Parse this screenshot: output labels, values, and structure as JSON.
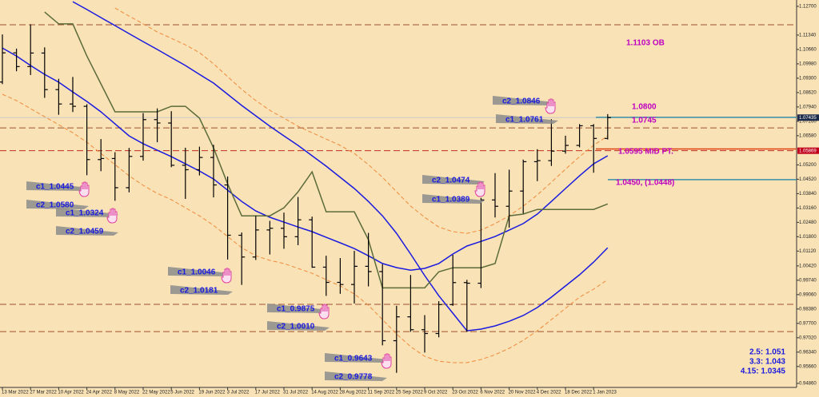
{
  "chart_data": {
    "type": "ohlc",
    "categories": [
      "13 Mar 2022",
      null,
      "27 Mar 2022",
      null,
      "10 Apr 2022",
      null,
      "24 Apr 2022",
      null,
      "8 May 2022",
      null,
      "22 May 2022",
      null,
      "5 Jun 2022",
      null,
      "19 Jun 2022",
      null,
      "3 Jul 2022",
      null,
      "17 Jul 2022",
      null,
      "31 Jul 2022",
      null,
      "14 Aug 2022",
      null,
      "28 Aug 2022",
      null,
      "11 Sep 2022",
      null,
      "25 Sep 2022",
      null,
      "9 Oct 2022",
      null,
      "23 Oct 2022",
      null,
      "6 Nov 2022",
      null,
      "20 Nov 2022",
      null,
      "4 Dec 2022",
      null,
      "18 Dec 2022",
      null,
      "1 Jan 2023",
      null
    ],
    "open": [
      1.0912,
      1.105,
      1.0985,
      1.1049,
      1.0876,
      1.0808,
      1.0797,
      1.0545,
      1.055,
      1.0412,
      1.056,
      1.0734,
      1.0718,
      1.0518,
      1.0497,
      1.0555,
      1.0425,
      1.0187,
      1.0084,
      1.0212,
      1.022,
      1.018,
      1.026,
      1.0036,
      0.9964,
      0.9954,
      1.004,
      1.0015,
      0.9688,
      0.9801,
      0.974,
      0.9722,
      0.9859,
      0.9963,
      0.996,
      1.0354,
      1.0324,
      1.0396,
      1.0535,
      1.054,
      1.0585,
      1.0612,
      1.0705,
      1.0645
    ],
    "high": [
      1.1137,
      1.107,
      1.1185,
      1.1076,
      1.0927,
      1.0936,
      1.0807,
      1.0642,
      1.058,
      1.06,
      1.0765,
      1.0787,
      1.0774,
      1.0601,
      1.0606,
      1.0615,
      1.0465,
      1.02,
      1.0279,
      1.0255,
      1.0294,
      1.0368,
      1.0275,
      1.009,
      1.0079,
      1.0113,
      1.0198,
      1.005,
      0.9853,
      0.9999,
      0.9809,
      0.9875,
      1.0094,
      0.9976,
      1.0364,
      1.0481,
      1.0497,
      1.0545,
      1.0594,
      1.0736,
      1.0658,
      1.0713,
      1.0713,
      1.076
    ],
    "low": [
      1.0902,
      1.0963,
      1.0945,
      1.0837,
      1.0757,
      1.077,
      1.0471,
      1.049,
      1.035,
      1.039,
      1.054,
      1.0627,
      1.0509,
      1.0359,
      1.047,
      1.0366,
      1.0072,
      0.9952,
      1.007,
      1.0096,
      1.0123,
      1.014,
      1.0033,
      0.99,
      0.991,
      0.9864,
      0.9945,
      0.9666,
      0.9536,
      0.973,
      0.9632,
      0.9704,
      0.9853,
      0.973,
      0.9937,
      1.0271,
      1.0223,
      1.029,
      1.0443,
      1.0515,
      1.0573,
      1.0603,
      1.0483,
      1.064
    ],
    "close": [
      1.105,
      1.0985,
      1.1049,
      1.0876,
      1.0808,
      1.0797,
      1.0545,
      1.055,
      1.0412,
      1.056,
      1.0734,
      1.0718,
      1.0518,
      1.0497,
      1.0555,
      1.0425,
      1.0187,
      1.0084,
      1.0212,
      1.022,
      1.018,
      1.026,
      1.0036,
      0.9964,
      0.9954,
      1.004,
      1.0015,
      0.9688,
      0.9801,
      0.974,
      0.9722,
      0.9859,
      0.9963,
      0.996,
      1.0354,
      1.0324,
      1.0396,
      1.0535,
      1.054,
      1.0585,
      1.0612,
      1.0705,
      1.0645,
      1.07435
    ],
    "color": "#000000",
    "series": [
      {
        "color": "#1a1ae0",
        "style": "solid",
        "values": [
          null,
          null,
          null,
          null,
          null,
          1.1292,
          1.1255,
          1.1217,
          1.1179,
          1.1141,
          1.1103,
          1.1066,
          1.1028,
          1.099,
          1.0948,
          1.0907,
          1.0854,
          1.0801,
          1.0752,
          1.0703,
          1.0657,
          1.0612,
          1.0563,
          1.0514,
          1.0461,
          1.0408,
          1.0347,
          1.0279,
          1.0196,
          1.0098,
          0.9996,
          0.9901,
          0.9818,
          0.9735,
          0.9743,
          0.9758,
          0.978,
          0.9807,
          0.9845,
          0.9894,
          0.9947,
          1.0,
          1.006,
          1.0128
        ]
      },
      {
        "color": "#1a1ae0",
        "style": "solid",
        "values": [
          1.1073,
          1.1035,
          1.099,
          1.0948,
          1.0911,
          1.0865,
          1.082,
          1.0771,
          1.0714,
          1.0657,
          1.062,
          1.0589,
          1.0559,
          1.0525,
          1.0491,
          1.0453,
          1.04,
          1.0347,
          1.0302,
          1.0272,
          1.0249,
          1.0226,
          1.0204,
          1.0177,
          1.0151,
          1.0124,
          1.009,
          1.0053,
          1.0034,
          1.0022,
          1.003,
          1.0053,
          1.0098,
          1.0136,
          1.0158,
          1.0181,
          1.0211,
          1.0242,
          1.0287,
          1.0347,
          1.0408,
          1.0468,
          1.0525,
          1.0563
        ]
      },
      {
        "color": "#f08a3c",
        "style": "dashed",
        "values": [
          null,
          null,
          null,
          null,
          null,
          null,
          null,
          null,
          1.1262,
          1.1224,
          1.1187,
          1.1149,
          1.1119,
          1.1088,
          1.1051,
          1.0998,
          1.0937,
          1.0877,
          1.0824,
          1.0778,
          1.0741,
          1.0703,
          1.0672,
          1.0642,
          1.0612,
          1.0574,
          1.0521,
          1.0461,
          1.0393,
          1.0325,
          1.0272,
          1.0226,
          1.0204,
          1.0196,
          1.0211,
          1.0242,
          1.0279,
          1.0325,
          1.0378,
          1.0438,
          1.0499,
          1.0559,
          1.0612,
          1.0657
        ]
      },
      {
        "color": "#f08a3c",
        "style": "dashed",
        "values": [
          1.0854,
          1.0824,
          1.0786,
          1.0748,
          1.071,
          1.0672,
          1.0627,
          1.0574,
          1.0521,
          1.0468,
          1.0423,
          1.0385,
          1.0355,
          1.0317,
          1.0279,
          1.0234,
          1.0181,
          1.0128,
          1.009,
          1.0068,
          1.0053,
          1.003,
          1.0007,
          0.9977,
          0.9947,
          0.9909,
          0.9856,
          0.9788,
          0.972,
          0.966,
          0.9614,
          0.9591,
          0.9584,
          0.9584,
          0.9599,
          0.9622,
          0.9652,
          0.969,
          0.9735,
          0.9788,
          0.9841,
          0.9894,
          0.9932,
          0.9977
        ]
      },
      {
        "color": "#5c6b3a",
        "style": "solid",
        "values": [
          null,
          null,
          null,
          1.1243,
          1.1187,
          1.1187,
          1.1035,
          1.0903,
          1.0771,
          1.0771,
          1.0771,
          1.0771,
          1.0797,
          1.0797,
          1.0741,
          1.06,
          1.043,
          1.0279,
          1.0279,
          1.0279,
          1.0317,
          1.0392,
          1.0487,
          1.0298,
          1.0298,
          1.0298,
          1.0166,
          0.9938,
          0.9938,
          0.9938,
          0.9938,
          1.0014,
          1.0033,
          1.0033,
          1.0033,
          1.0053,
          1.0279,
          1.0287,
          1.0309,
          1.0309,
          1.0309,
          1.0309,
          1.0309,
          1.0335
        ]
      }
    ],
    "levels": [
      {
        "value": 1.1183,
        "color": "#a0522d",
        "style": "dashed"
      },
      {
        "value": 1.0695,
        "color": "#a0522d",
        "style": "dashed"
      },
      {
        "value": 1.05869,
        "color": "#c03020",
        "style": "dashed"
      },
      {
        "value": 0.986,
        "color": "#a0522d",
        "style": "dashed"
      },
      {
        "value": 0.9731,
        "color": "#a0522d",
        "style": "dashed"
      },
      {
        "value": 1.07435,
        "color": "#c8c8c8",
        "style": "solid"
      },
      {
        "value": 1.0745,
        "color": "#3a8fa8",
        "style": "solid"
      },
      {
        "value": 1.0595,
        "color": "#e04010",
        "style": "solid"
      },
      {
        "value": 1.045,
        "color": "#3a8fa8",
        "style": "solid"
      }
    ],
    "price_marks": [
      {
        "value": 1.07435,
        "label": "1.07435",
        "color": "#1c2a4a"
      },
      {
        "value": 1.05869,
        "label": "1.05869",
        "color": "#c0001c"
      }
    ],
    "annotations": [
      {
        "text": "1.1103 OB",
        "color": "#c000c0"
      },
      {
        "text": "1.0800",
        "color": "#c000c0"
      },
      {
        "text": "1.0745",
        "color": "#c000c0"
      },
      {
        "text": "1.0595 MID PT.",
        "color": "#c000c0"
      },
      {
        "text": "1.0450, (1.0448)",
        "color": "#c000c0"
      },
      {
        "text": "c2_1.0846",
        "color": "#1a1ae0"
      },
      {
        "text": "c1_1.0761",
        "color": "#1a1ae0"
      },
      {
        "text": "c2_1.0474",
        "color": "#1a1ae0"
      },
      {
        "text": "c1_1.0389",
        "color": "#1a1ae0"
      },
      {
        "text": "c1_1.0445",
        "color": "#1a1ae0"
      },
      {
        "text": "c2_1.0580",
        "color": "#1a1ae0"
      },
      {
        "text": "c1_1.0324",
        "color": "#1a1ae0"
      },
      {
        "text": "c2_1.0459",
        "color": "#1a1ae0"
      },
      {
        "text": "c1_1.0046",
        "color": "#1a1ae0"
      },
      {
        "text": "c2_1.0181",
        "color": "#1a1ae0"
      },
      {
        "text": "c1_0.9875",
        "color": "#1a1ae0"
      },
      {
        "text": "c2_1.0010",
        "color": "#1a1ae0"
      },
      {
        "text": "c1_0.9643",
        "color": "#1a1ae0"
      },
      {
        "text": "c2_0.9778",
        "color": "#1a1ae0"
      },
      {
        "text": "2.5: 1.051",
        "color": "#1a1ae0"
      },
      {
        "text": "3.3: 1.043",
        "color": "#1a1ae0"
      },
      {
        "text": "4.15: 1.0345",
        "color": "#1a1ae0"
      }
    ],
    "ylim": [
      0.9467,
      1.13
    ],
    "yticks": [
      {
        "value": 0.9486,
        "label": "0.94860"
      },
      {
        "value": 0.9566,
        "label": "0.95660"
      },
      {
        "value": 0.9634,
        "label": "0.96340"
      },
      {
        "value": 0.9702,
        "label": "0.97020"
      },
      {
        "value": 0.977,
        "label": "0.97700"
      },
      {
        "value": 0.9838,
        "label": "0.98380"
      },
      {
        "value": 0.9906,
        "label": "0.99060"
      },
      {
        "value": 0.9974,
        "label": "0.99740"
      },
      {
        "value": 1.0042,
        "label": "1.00420"
      },
      {
        "value": 1.0112,
        "label": "1.01120"
      },
      {
        "value": 1.018,
        "label": "1.01800"
      },
      {
        "value": 1.0248,
        "label": "1.02480"
      },
      {
        "value": 1.0316,
        "label": "1.03160"
      },
      {
        "value": 1.0384,
        "label": "1.03840"
      },
      {
        "value": 1.0452,
        "label": "1.04520"
      },
      {
        "value": 1.052,
        "label": "1.05200"
      },
      {
        "value": 1.0658,
        "label": "1.06580"
      },
      {
        "value": 1.0726,
        "label": "1.07260"
      },
      {
        "value": 1.0794,
        "label": "1.07940"
      },
      {
        "value": 1.0862,
        "label": "1.08620"
      },
      {
        "value": 1.093,
        "label": "1.09300"
      },
      {
        "value": 1.0998,
        "label": "1.09980"
      },
      {
        "value": 1.1066,
        "label": "1.10660"
      },
      {
        "value": 1.1134,
        "label": "1.11340"
      },
      {
        "value": 1.127,
        "label": "1.12700"
      }
    ],
    "grid": false
  }
}
